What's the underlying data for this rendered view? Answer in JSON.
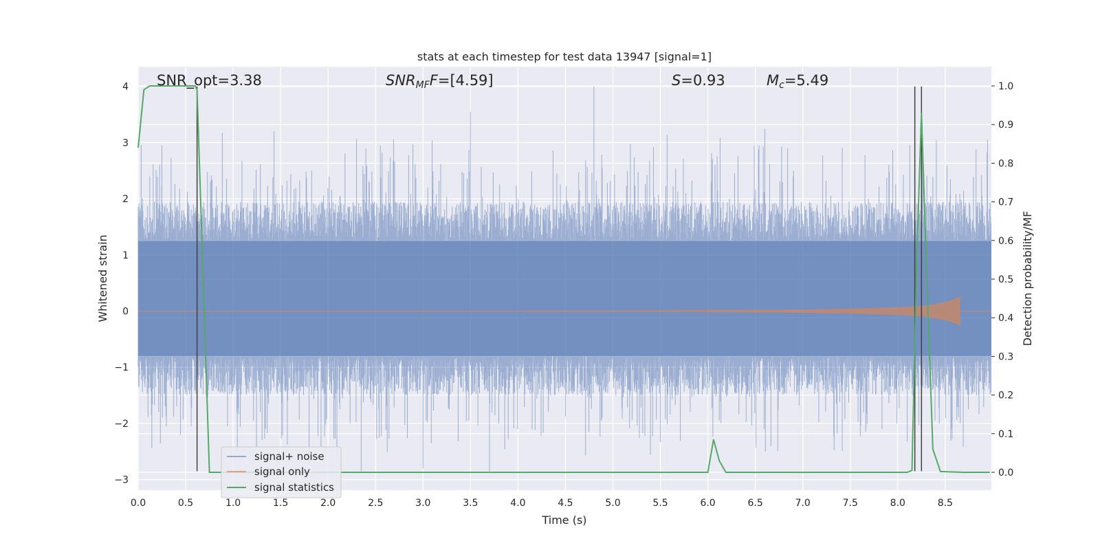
{
  "chart_data": {
    "type": "line",
    "title": "stats at each timestep for test data 13947 [signal=1]",
    "xlabel": "Time (s)",
    "ylabel": "Whitened strain",
    "y2label": "Detection probability/MF",
    "xlim": [
      0.0,
      9.0
    ],
    "ylim": [
      -3.2,
      4.3
    ],
    "y2lim": [
      -0.05,
      1.03
    ],
    "x_ticks": [
      "0.0",
      "0.5",
      "1.0",
      "1.5",
      "2.0",
      "2.5",
      "3.0",
      "3.5",
      "4.0",
      "4.5",
      "5.0",
      "5.5",
      "6.0",
      "6.5",
      "7.0",
      "7.5",
      "8.0",
      "8.5"
    ],
    "y_ticks": [
      "-3",
      "-2",
      "-1",
      "0",
      "1",
      "2",
      "3",
      "4"
    ],
    "y2_ticks": [
      "0.0",
      "0.1",
      "0.2",
      "0.3",
      "0.4",
      "0.5",
      "0.6",
      "0.7",
      "0.8",
      "0.9",
      "1.0"
    ],
    "grid": true,
    "legend_position": "lower-left",
    "annotations": {
      "snr_opt": "SNR_opt=3.38",
      "snr_mf_main": "SNR",
      "snr_mf_sub": "MF",
      "snr_mf_value": "=[4.59]",
      "s_label": "S",
      "s_value": "=0.93",
      "mc_main": "M",
      "mc_sub": "c",
      "mc_value": "=5.49"
    },
    "series": [
      {
        "name": "signal+ noise",
        "color": "#4c72b0",
        "axis": "left",
        "description_band": {
          "core_lower": -0.8,
          "core_upper": 1.25,
          "spike_max": 4.0,
          "spike_min": -2.85
        }
      },
      {
        "name": "signal only",
        "color": "#dd8452",
        "axis": "left",
        "envelope": {
          "x": [
            0.0,
            5.0,
            6.0,
            7.0,
            7.5,
            8.0,
            8.3,
            8.5,
            8.62,
            8.67
          ],
          "amp": [
            0.01,
            0.012,
            0.02,
            0.03,
            0.045,
            0.07,
            0.1,
            0.16,
            0.23,
            0.28
          ]
        }
      },
      {
        "name": "signal statistics",
        "color": "#55a868",
        "axis": "right",
        "x": [
          0.0,
          0.06,
          0.12,
          0.6,
          0.62,
          0.75,
          6.0,
          6.06,
          6.12,
          6.19,
          8.1,
          8.15,
          8.2,
          8.25,
          8.3,
          8.37,
          8.45,
          8.7,
          8.97
        ],
        "y": [
          0.84,
          0.99,
          1.0,
          1.0,
          0.99,
          0.0,
          0.0,
          0.085,
          0.03,
          0.0,
          0.0,
          0.005,
          0.55,
          0.93,
          0.55,
          0.06,
          0.002,
          0.0,
          0.0
        ]
      }
    ],
    "vertical_lines": [
      {
        "x": 0.62,
        "y_from": -2.85,
        "y_to": 4.0
      },
      {
        "x": 8.18,
        "y_from": -2.85,
        "y_to": 4.0
      },
      {
        "x": 8.25,
        "y_from": -2.85,
        "y_to": 4.0
      }
    ],
    "colors": {
      "plot_bg": "#eaeaf2",
      "grid": "#ffffff",
      "vline": "#404040"
    }
  }
}
